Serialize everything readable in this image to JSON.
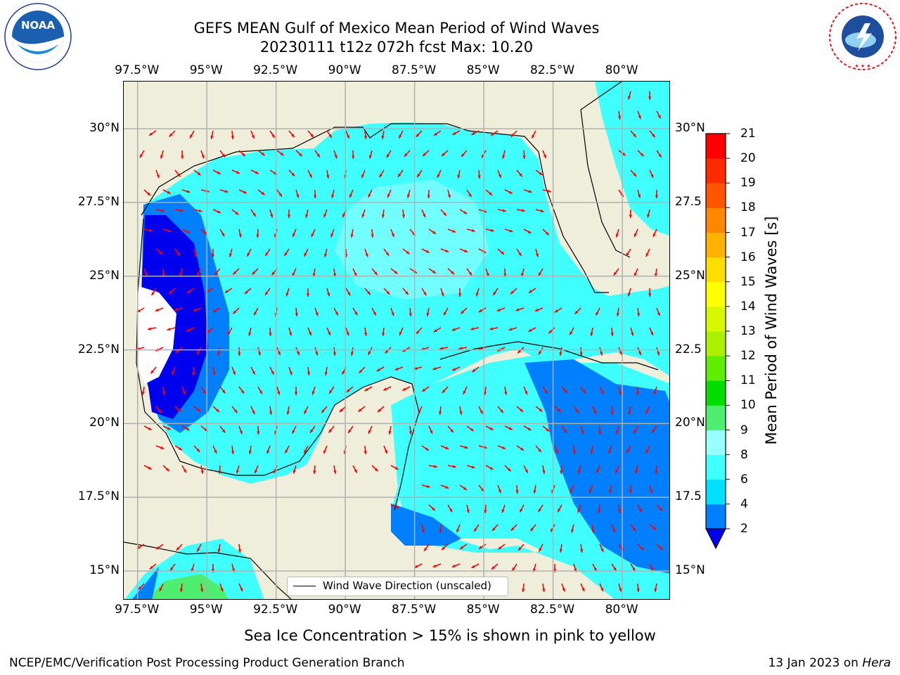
{
  "header": {
    "title_line1": "GEFS MEAN Gulf of Mexico Mean Period of Wind Waves",
    "title_line2": "20230111 t12z 072h fcst   Max: 10.20"
  },
  "logos": {
    "left": {
      "name": "NOAA",
      "ring_text": "NATIONAL OCEANIC AND ATMOSPHERIC ADMINISTRATION · U.S. DEPARTMENT OF COMMERCE"
    },
    "right": {
      "name": "NATIONAL WEATHER SERVICE"
    }
  },
  "map": {
    "lon_ticks": [
      "97.5°W",
      "95°W",
      "92.5°W",
      "90°W",
      "87.5°W",
      "85°W",
      "82.5°W",
      "80°W"
    ],
    "lon_values": [
      -97.5,
      -95,
      -92.5,
      -90,
      -87.5,
      -85,
      -82.5,
      -80
    ],
    "lat_ticks": [
      "30°N",
      "27.5°N",
      "25°N",
      "22.5°N",
      "20°N",
      "17.5°N",
      "15°N"
    ],
    "lat_values": [
      30,
      27.5,
      25,
      22.5,
      20,
      17.5,
      15
    ],
    "lat_ticks_right": [
      "30°N",
      "27.5",
      "25°N",
      "22.5",
      "20°N",
      "17.5",
      "15°N"
    ],
    "extent": {
      "lon": [
        -98,
        -78.25
      ],
      "lat": [
        14,
        31.6
      ]
    },
    "grid": true,
    "land_color": "#efeedb",
    "legend_label": "Wind Wave Direction (unscaled)",
    "arrow_color": "#ff0000"
  },
  "colorbar": {
    "label": "Mean Period of Wind Waves [s]",
    "tick_labels": [
      "2",
      "4",
      "6",
      "8",
      "9",
      "10",
      "11",
      "12",
      "13",
      "14",
      "15",
      "16",
      "17",
      "18",
      "19",
      "20",
      "21"
    ],
    "colors": [
      "#0000ee",
      "#0080ff",
      "#00e0ff",
      "#40ffff",
      "#99ffff",
      "#50ee70",
      "#00dd00",
      "#60ee00",
      "#aaf000",
      "#d8f800",
      "#ffff00",
      "#ffdd00",
      "#ffb300",
      "#ff8800",
      "#ff5500",
      "#ff2a00",
      "#ff0000"
    ],
    "extend_color": "#0000ee"
  },
  "footer": {
    "note": "Sea Ice Concentration > 15% is shown in pink to yellow",
    "credit": "NCEP/EMC/Verification Post Processing Product Generation Branch",
    "date": "13 Jan 2023 on",
    "machine": "Hera"
  }
}
